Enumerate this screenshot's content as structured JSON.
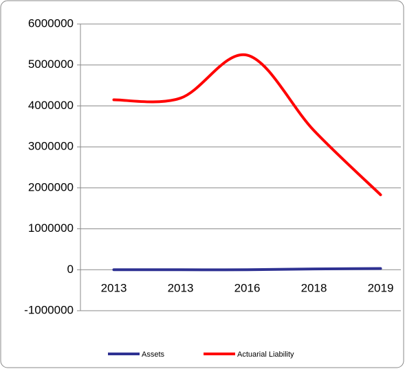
{
  "chart_data": {
    "type": "line",
    "categories": [
      "2013",
      "2013",
      "2016",
      "2018",
      "2019"
    ],
    "series": [
      {
        "name": "Assets",
        "color": "#2e3192",
        "values": [
          0,
          0,
          0,
          20000,
          30000
        ]
      },
      {
        "name": "Actuarial Liability",
        "color": "#ff0000",
        "values": [
          4150000,
          4190000,
          5240000,
          3400000,
          1830000
        ]
      }
    ],
    "ylim": [
      -1000000,
      6000000
    ],
    "yticks": [
      -1000000,
      0,
      1000000,
      2000000,
      3000000,
      4000000,
      5000000,
      6000000
    ],
    "grid": true,
    "smooth": true,
    "legend": "bottom"
  }
}
